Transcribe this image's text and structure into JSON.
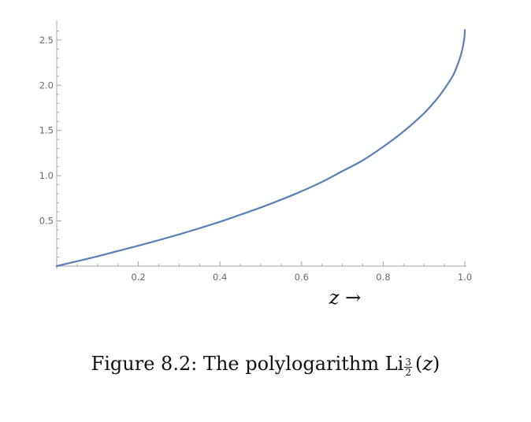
{
  "chart_data": {
    "type": "line",
    "xlabel": "z →",
    "ylabel": "",
    "xlim": [
      0,
      1.0
    ],
    "ylim": [
      0,
      2.612
    ],
    "xticks": [
      "0.2",
      "0.4",
      "0.6",
      "0.8",
      "1.0"
    ],
    "yticks": [
      "0.5",
      "1.0",
      "1.5",
      "2.0",
      "2.5"
    ],
    "grid": false,
    "color": "#5b80b9",
    "series": [
      {
        "x": [
          0.0,
          0.05,
          0.1,
          0.15,
          0.2,
          0.25,
          0.3,
          0.35,
          0.4,
          0.45,
          0.5,
          0.55,
          0.6,
          0.65,
          0.7,
          0.75,
          0.8,
          0.85,
          0.9,
          0.93,
          0.95,
          0.97,
          0.98,
          0.99,
          0.995,
          0.999,
          1.0
        ],
        "y": [
          0.0,
          0.054,
          0.108,
          0.167,
          0.226,
          0.287,
          0.351,
          0.419,
          0.49,
          0.568,
          0.648,
          0.735,
          0.828,
          0.931,
          1.05,
          1.17,
          1.32,
          1.49,
          1.69,
          1.84,
          1.96,
          2.1,
          2.2,
          2.33,
          2.42,
          2.53,
          2.612
        ]
      }
    ]
  },
  "caption": {
    "prefix": "Figure 8.2: The polylogarithm ",
    "function": "Li",
    "subscript_num": "3",
    "subscript_den": "2",
    "open_paren": "(",
    "argument": "z",
    "close_paren": ")"
  }
}
